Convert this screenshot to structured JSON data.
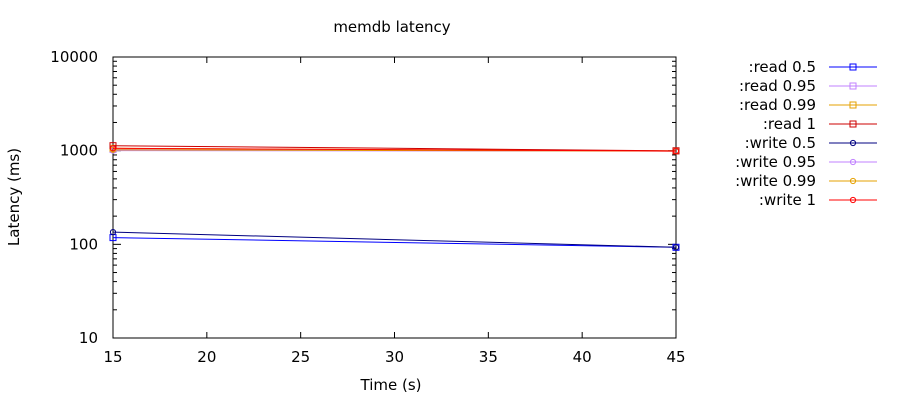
{
  "chart_data": {
    "type": "line",
    "title": "memdb latency",
    "xlabel": "Time (s)",
    "ylabel": "Latency (ms)",
    "xlim": [
      15,
      45
    ],
    "ylim": [
      10,
      10000
    ],
    "yscale": "log",
    "x_ticks": [
      15,
      20,
      25,
      30,
      35,
      40,
      45
    ],
    "y_ticks": [
      10,
      100,
      1000,
      10000
    ],
    "grid": false,
    "legend_position": "outside-right",
    "series": [
      {
        "name": ":read 0.5",
        "color": "#0000ff",
        "marker": "square",
        "x": [
          15,
          45
        ],
        "y": [
          118,
          93
        ]
      },
      {
        "name": ":read 0.95",
        "color": "#c080ff",
        "marker": "square",
        "x": [
          15,
          45
        ],
        "y": [
          1030,
          995
        ]
      },
      {
        "name": ":read 0.99",
        "color": "#e5a000",
        "marker": "square",
        "x": [
          15,
          45
        ],
        "y": [
          1060,
          995
        ]
      },
      {
        "name": ":read 1",
        "color": "#cc0000",
        "marker": "square",
        "x": [
          15,
          45
        ],
        "y": [
          1130,
          995
        ]
      },
      {
        "name": ":write 0.5",
        "color": "#000080",
        "marker": "circle",
        "x": [
          15,
          45
        ],
        "y": [
          135,
          93
        ]
      },
      {
        "name": ":write 0.95",
        "color": "#c080ff",
        "marker": "circle",
        "x": [
          15,
          45
        ],
        "y": [
          1000,
          990
        ]
      },
      {
        "name": ":write 0.99",
        "color": "#e5a000",
        "marker": "circle",
        "x": [
          15,
          45
        ],
        "y": [
          1020,
          990
        ]
      },
      {
        "name": ":write 1",
        "color": "#ff0000",
        "marker": "circle",
        "x": [
          15,
          45
        ],
        "y": [
          1060,
          990
        ]
      }
    ]
  }
}
